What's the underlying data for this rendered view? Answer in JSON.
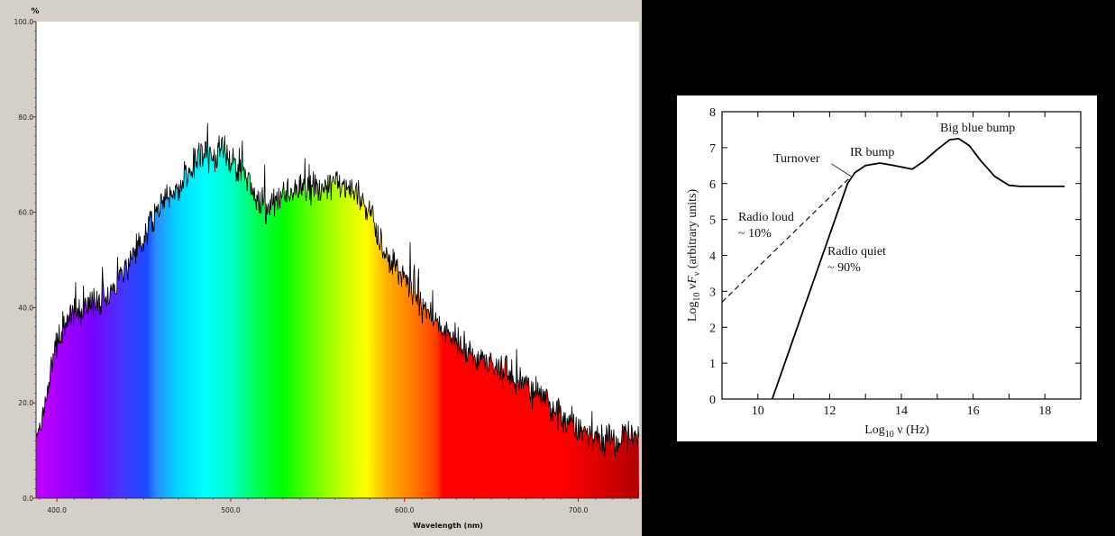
{
  "colors": {
    "page_background": "#000000",
    "spectrum_window": "#d4d0c8",
    "spectrum_plot_bg": "#ffffff",
    "spectrum_line": "#000000",
    "sed_background": "#ffffff",
    "sed_line": "#000000"
  },
  "chart_data": [
    {
      "type": "area",
      "title": "",
      "ylabel": "%",
      "xlabel": "Wavelength (nm)",
      "xlim": [
        388,
        735
      ],
      "ylim": [
        0,
        100
      ],
      "x_ticks": [
        400,
        500,
        600,
        700
      ],
      "x_tick_labels": [
        "400.0",
        "500.0",
        "600.0",
        "700.0"
      ],
      "y_ticks": [
        0,
        20,
        40,
        60,
        80,
        100
      ],
      "y_tick_labels": [
        "0.0",
        "20.0",
        "40.0",
        "60.0",
        "80.0",
        "100.0"
      ],
      "grid": false,
      "fill": "visible-spectrum rainbow gradient under the curve",
      "series": [
        {
          "x": [
            388,
            392,
            400,
            410,
            420,
            430,
            440,
            450,
            460,
            470,
            480,
            485,
            490,
            495,
            500,
            510,
            520,
            530,
            540,
            550,
            560,
            570,
            580,
            585,
            590,
            600,
            610,
            620,
            630,
            640,
            650,
            660,
            670,
            680,
            685,
            690,
            700,
            710,
            720,
            735
          ],
          "values": [
            14,
            17,
            33,
            39,
            41,
            43,
            49,
            55,
            62,
            65,
            71,
            73,
            70,
            74,
            71,
            67,
            61,
            64,
            65,
            65,
            66,
            64,
            61,
            55,
            51,
            46,
            40,
            36,
            33,
            30,
            28,
            26,
            24,
            21,
            18,
            17,
            15,
            13,
            12,
            14
          ]
        }
      ]
    },
    {
      "type": "line",
      "title": "",
      "xlabel": "Log10 ν (Hz)",
      "ylabel": "Log10 νFν (arbitrary units)",
      "xlim": [
        9,
        19
      ],
      "ylim": [
        0,
        8
      ],
      "x_ticks": [
        10,
        12,
        14,
        16,
        18
      ],
      "y_ticks": [
        0,
        1,
        2,
        3,
        4,
        5,
        6,
        7,
        8
      ],
      "grid": false,
      "series": [
        {
          "style": "solid",
          "x": [
            10.4,
            12.5,
            12.7,
            13.0,
            13.4,
            13.8,
            14.3,
            14.6,
            15.0,
            15.35,
            15.6,
            15.9,
            16.2,
            16.6,
            17.0,
            17.3,
            18.0,
            18.55
          ],
          "values": [
            0,
            6.0,
            6.3,
            6.5,
            6.57,
            6.5,
            6.4,
            6.6,
            6.95,
            7.22,
            7.25,
            7.05,
            6.65,
            6.2,
            5.95,
            5.92,
            5.92,
            5.92
          ]
        },
        {
          "style": "dashed",
          "x": [
            9.0,
            12.6
          ],
          "values": [
            2.7,
            6.2
          ]
        }
      ],
      "annotations": {
        "big_blue_bump": "Big blue bump",
        "ir_bump": "IR bump",
        "turnover": "Turnover",
        "radio_loud": "Radio loud",
        "radio_loud_pct": "~ 10%",
        "radio_quiet": "Radio quiet",
        "radio_quiet_pct": "~ 90%"
      }
    }
  ]
}
